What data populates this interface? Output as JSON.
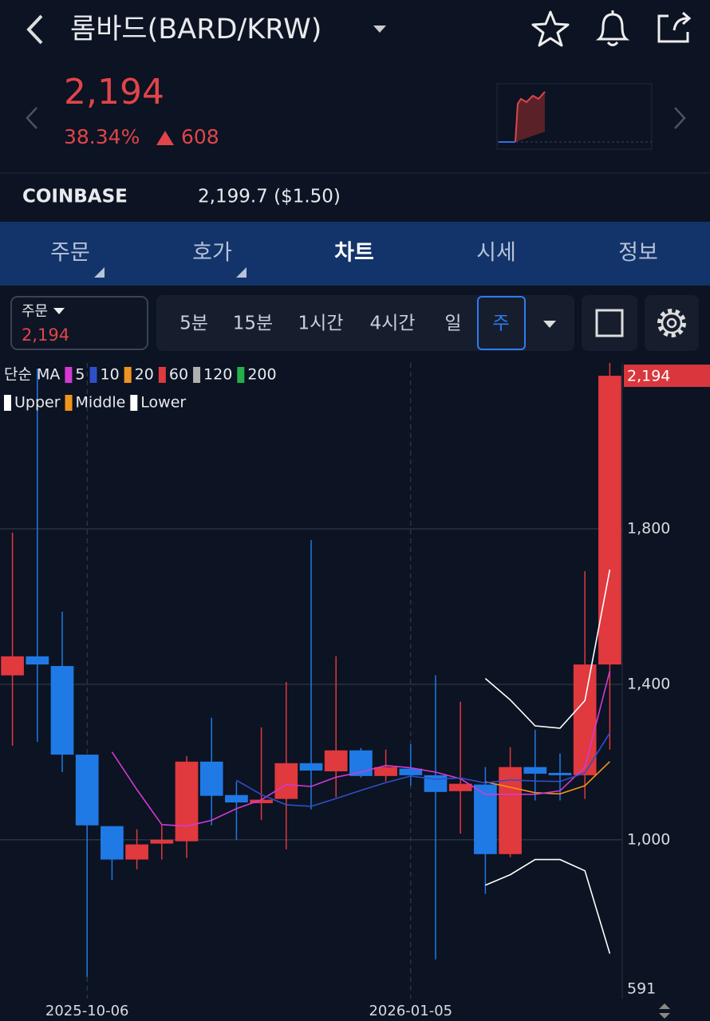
{
  "header": {
    "title": "롬바드(BARD/KRW)"
  },
  "price": {
    "value": "2,194",
    "change_pct": "38.34%",
    "change": "608"
  },
  "exchange": {
    "name": "COINBASE",
    "price": "2,199.7 ($1.50)"
  },
  "tabs": [
    "주문",
    "호가",
    "차트",
    "시세",
    "정보"
  ],
  "order_box": {
    "label": "주문",
    "price": "2,194"
  },
  "intervals": [
    "5분",
    "15분",
    "1시간",
    "4시간",
    "일",
    "주"
  ],
  "chart_data": {
    "type": "candlestick",
    "categories": [
      null,
      null,
      null,
      "2025-10-06",
      null,
      null,
      null,
      null,
      null,
      null,
      null,
      null,
      null,
      null,
      null,
      null,
      "2026-01-05",
      null,
      null,
      null,
      null,
      null,
      null,
      null,
      null
    ],
    "open": [
      1423,
      1472,
      1447,
      1219,
      1035,
      949,
      990,
      996,
      1201,
      1115,
      1094,
      1105,
      1197,
      1176,
      1230,
      1164,
      1183,
      1166,
      1125,
      1142,
      963,
      1187,
      1172,
      1166,
      1451
    ],
    "high": [
      1790,
      2212,
      1587,
      1219,
      1035,
      1027,
      1037,
      1215,
      1314,
      1150,
      1289,
      1406,
      1771,
      1472,
      1236,
      1232,
      1246,
      1423,
      1355,
      1187,
      1238,
      1283,
      1222,
      1691,
      2227
    ],
    "low": [
      1242,
      1252,
      1174,
      647,
      897,
      924,
      949,
      953,
      1037,
      1000,
      1051,
      975,
      1078,
      1109,
      1160,
      1150,
      1139,
      692,
      1016,
      861,
      955,
      1101,
      1101,
      1105,
      1232
    ],
    "close": [
      1472,
      1451,
      1219,
      1037,
      949,
      988,
      1000,
      1201,
      1113,
      1096,
      1103,
      1197,
      1178,
      1230,
      1164,
      1187,
      1166,
      1123,
      1144,
      963,
      1187,
      1170,
      1166,
      1451,
      2194
    ],
    "up_color": "#e0393e",
    "down_color": "#1f7ae6",
    "ylim": [
      591,
      2227
    ],
    "yticks": [
      591,
      {
        "value": 1000,
        "label": "1,000"
      },
      {
        "value": 1400,
        "label": "1,400"
      },
      {
        "value": 1800,
        "label": "1,800"
      }
    ],
    "last": {
      "value": 2194,
      "label": "2,194",
      "color": "#d9373d"
    },
    "ma": {
      "label": "단순 MA",
      "series": [
        {
          "name": "5",
          "color": "#d23ad2",
          "values": [
            null,
            null,
            null,
            null,
            1226,
            1129,
            1039,
            1035,
            1050,
            1080,
            1103,
            1142,
            1137,
            1161,
            1174,
            1191,
            1185,
            1174,
            1157,
            1117,
            1117,
            1117,
            1126,
            1187,
            1434
          ]
        },
        {
          "name": "10",
          "color": "#2f4fc9",
          "values": [
            null,
            null,
            null,
            null,
            null,
            null,
            null,
            null,
            null,
            1153,
            1116,
            1090,
            1086,
            1106,
            1127,
            1147,
            1164,
            1156,
            1159,
            1146,
            1154,
            1151,
            1150,
            1172,
            1275
          ]
        },
        {
          "name": "20",
          "color": "#f0931e"
        },
        {
          "name": "60",
          "color": "#e0393e"
        },
        {
          "name": "120",
          "color": "#b0b0b0"
        },
        {
          "name": "200",
          "color": "#25b04a"
        }
      ]
    },
    "bollinger": {
      "series": [
        {
          "name": "Upper",
          "color": "#ffffff",
          "values": [
            null,
            null,
            null,
            null,
            null,
            null,
            null,
            null,
            null,
            null,
            null,
            null,
            null,
            null,
            null,
            null,
            null,
            null,
            null,
            1415,
            1360,
            1293,
            1287,
            1358,
            1695
          ]
        },
        {
          "name": "Middle",
          "color": "#f0931e",
          "values": [
            null,
            null,
            null,
            null,
            null,
            null,
            null,
            null,
            null,
            null,
            null,
            null,
            null,
            null,
            null,
            null,
            null,
            null,
            null,
            1149,
            1135,
            1121,
            1118,
            1139,
            1201
          ]
        },
        {
          "name": "Lower",
          "color": "#ffffff",
          "values": [
            null,
            null,
            null,
            null,
            null,
            null,
            null,
            null,
            null,
            null,
            null,
            null,
            null,
            null,
            null,
            null,
            null,
            null,
            null,
            883,
            910,
            949,
            949,
            920,
            707
          ]
        }
      ]
    }
  }
}
